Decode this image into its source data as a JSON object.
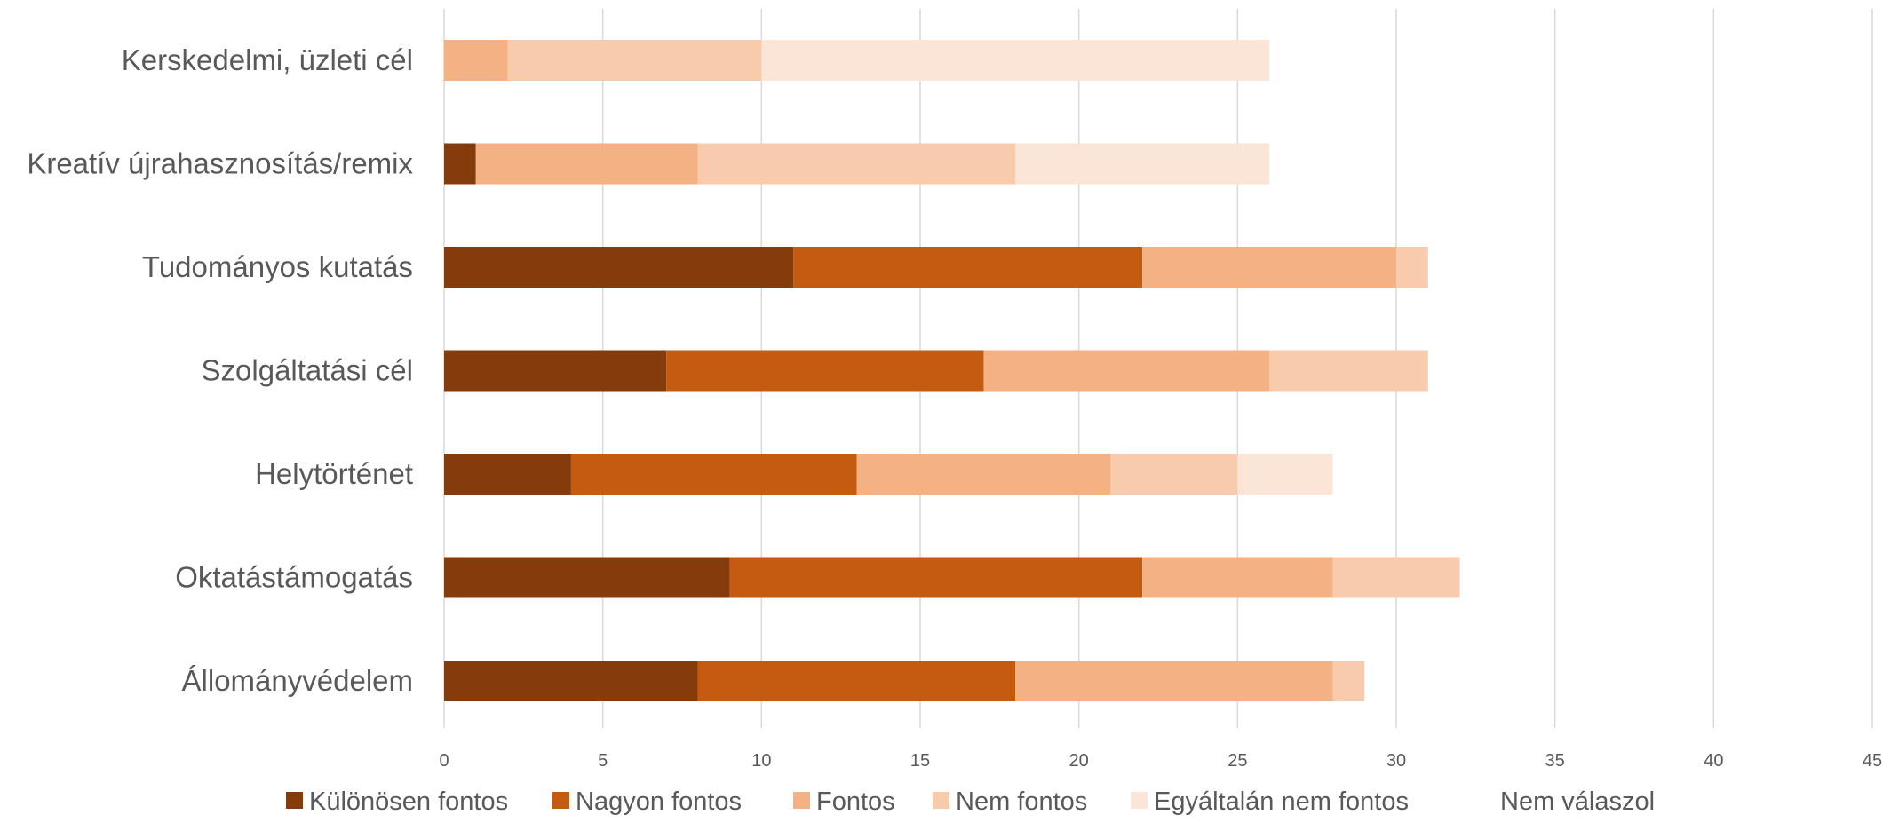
{
  "chart_data": {
    "type": "bar",
    "orientation": "horizontal",
    "stacked": true,
    "title": "",
    "xlabel": "",
    "ylabel": "",
    "xlim": [
      0,
      45
    ],
    "x_ticks": [
      0,
      5,
      10,
      15,
      20,
      25,
      30,
      35,
      40,
      45
    ],
    "grid": "vertical",
    "legend_position": "bottom",
    "categories": [
      "Kerskedelmi, üzleti cél",
      "Kreatív újrahasznosítás/remix",
      "Tudományos kutatás",
      "Szolgáltatási cél",
      "Helytörténet",
      "Oktatástámogatás",
      "Állományvédelem"
    ],
    "series": [
      {
        "name": "Különösen fontos",
        "color": "#843C0C",
        "values": [
          0,
          1,
          11,
          7,
          4,
          9,
          8
        ]
      },
      {
        "name": "Nagyon fontos",
        "color": "#C55A11",
        "values": [
          0,
          0,
          11,
          10,
          9,
          13,
          10
        ]
      },
      {
        "name": "Fontos",
        "color": "#F4B183",
        "values": [
          2,
          7,
          8,
          9,
          8,
          6,
          10
        ]
      },
      {
        "name": "Nem fontos",
        "color": "#F8CBAD",
        "values": [
          8,
          10,
          1,
          5,
          4,
          4,
          1
        ]
      },
      {
        "name": "Egyáltalán nem fontos",
        "color": "#FBE5D6",
        "values": [
          16,
          8,
          0,
          0,
          3,
          0,
          0
        ]
      },
      {
        "name": "Nem válaszol",
        "color": "#FFFFFF",
        "values": [
          0,
          0,
          0,
          0,
          0,
          0,
          0
        ]
      }
    ]
  }
}
